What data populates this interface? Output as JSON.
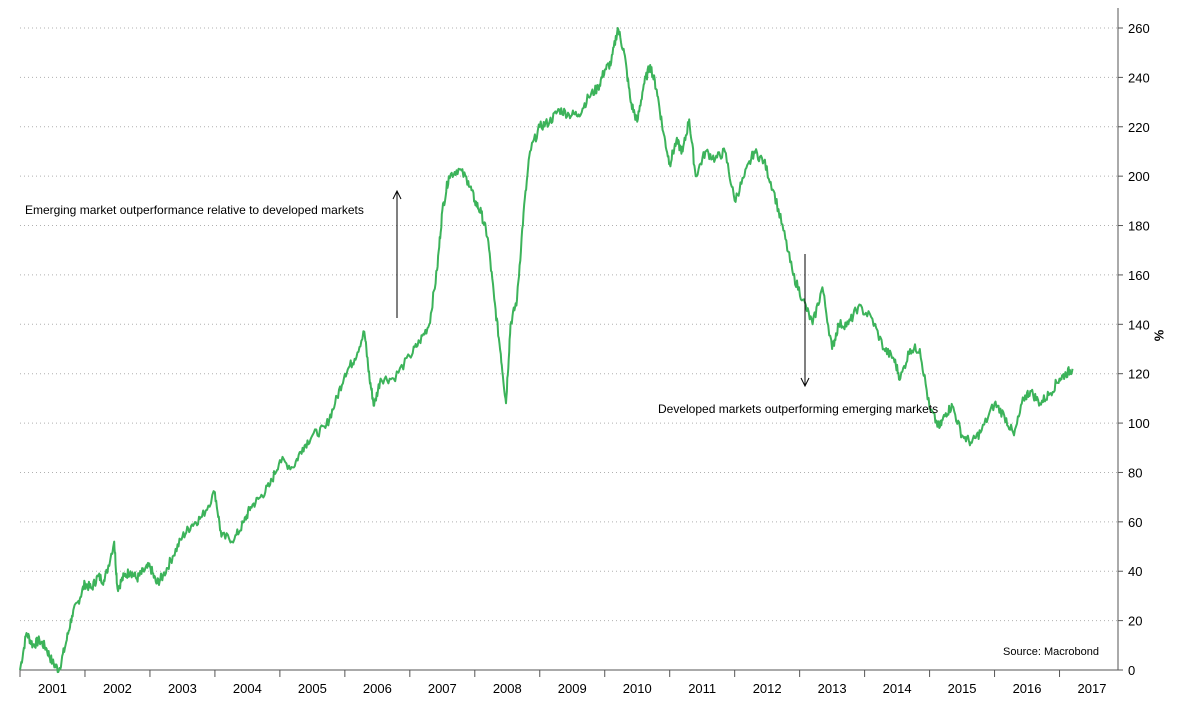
{
  "chart_data": {
    "type": "line",
    "title": "",
    "xlabel": "",
    "ylabel": "%",
    "ylim": [
      0,
      268
    ],
    "yticks": [
      0,
      20,
      40,
      60,
      80,
      100,
      120,
      140,
      160,
      180,
      200,
      220,
      240,
      260
    ],
    "xticks": [
      "2001",
      "2002",
      "2003",
      "2004",
      "2005",
      "2006",
      "2007",
      "2008",
      "2009",
      "2010",
      "2011",
      "2012",
      "2013",
      "2014",
      "2015",
      "2016",
      "2017"
    ],
    "grid": "horizontal-dotted",
    "line_color": "#3cb35a",
    "series": [
      {
        "x": [
          2001.0,
          2001.1,
          2001.2,
          2001.3,
          2001.4,
          2001.5,
          2001.6,
          2001.7,
          2001.8,
          2001.9,
          2002.0,
          2002.1,
          2002.2,
          2002.3,
          2002.45,
          2002.5,
          2002.6,
          2002.7,
          2002.8,
          2002.9,
          2003.0,
          2003.1,
          2003.2,
          2003.35,
          2003.5,
          2003.65,
          2003.8,
          2004.0,
          2004.1,
          2004.3,
          2004.45,
          2004.55,
          2004.7,
          2004.85,
          2005.0,
          2005.2,
          2005.35,
          2005.5,
          2005.7,
          2005.85,
          2006.0,
          2006.15,
          2006.3,
          2006.38,
          2006.45,
          2006.55,
          2006.75,
          2007.0,
          2007.15,
          2007.3,
          2007.42,
          2007.5,
          2007.6,
          2007.75,
          2007.9,
          2008.0,
          2008.1,
          2008.2,
          2008.3,
          2008.4,
          2008.48,
          2008.55,
          2008.65,
          2008.75,
          2008.85,
          2009.0,
          2009.15,
          2009.3,
          2009.45,
          2009.6,
          2009.75,
          2009.9,
          2010.0,
          2010.1,
          2010.2,
          2010.3,
          2010.4,
          2010.5,
          2010.6,
          2010.7,
          2010.8,
          2010.9,
          2011.0,
          2011.1,
          2011.2,
          2011.3,
          2011.4,
          2011.55,
          2011.7,
          2011.85,
          2012.0,
          2012.15,
          2012.3,
          2012.45,
          2012.6,
          2012.75,
          2012.9,
          2013.05,
          2013.2,
          2013.35,
          2013.5,
          2013.6,
          2013.75,
          2013.9,
          2014.1,
          2014.3,
          2014.45,
          2014.55,
          2014.7,
          2014.85,
          2015.0,
          2015.15,
          2015.25,
          2015.35,
          2015.5,
          2015.65,
          2015.8,
          2016.0,
          2016.15,
          2016.3,
          2016.45,
          2016.55,
          2016.7,
          2016.85,
          2017.0,
          2017.1,
          2017.2
        ],
        "y": [
          0,
          15,
          10,
          12,
          9,
          3,
          0,
          10,
          22,
          28,
          35,
          33,
          38,
          36,
          52,
          33,
          38,
          40,
          37,
          40,
          42,
          35,
          38,
          46,
          54,
          59,
          62,
          72,
          54,
          53,
          60,
          66,
          70,
          75,
          85,
          82,
          90,
          95,
          98,
          108,
          120,
          126,
          137,
          118,
          107,
          118,
          118,
          127,
          133,
          140,
          162,
          186,
          200,
          203,
          198,
          190,
          185,
          175,
          150,
          128,
          108,
          140,
          150,
          185,
          210,
          220,
          222,
          227,
          225,
          225,
          232,
          236,
          243,
          246,
          260,
          250,
          230,
          222,
          237,
          245,
          235,
          218,
          205,
          214,
          210,
          223,
          200,
          210,
          207,
          210,
          190,
          200,
          210,
          206,
          194,
          178,
          160,
          150,
          140,
          155,
          130,
          140,
          140,
          147,
          143,
          130,
          126,
          118,
          130,
          130,
          106,
          98,
          104,
          107,
          95,
          92,
          97,
          108,
          103,
          95,
          110,
          113,
          108,
          112,
          118,
          120,
          122
        ]
      }
    ],
    "annotations": [
      {
        "text": "Emerging market outperformance relative to developed markets",
        "arrow": "up"
      },
      {
        "text": "Developed markets outperforming emerging markets",
        "arrow": "down"
      }
    ],
    "source": "Source: Macrobond"
  }
}
